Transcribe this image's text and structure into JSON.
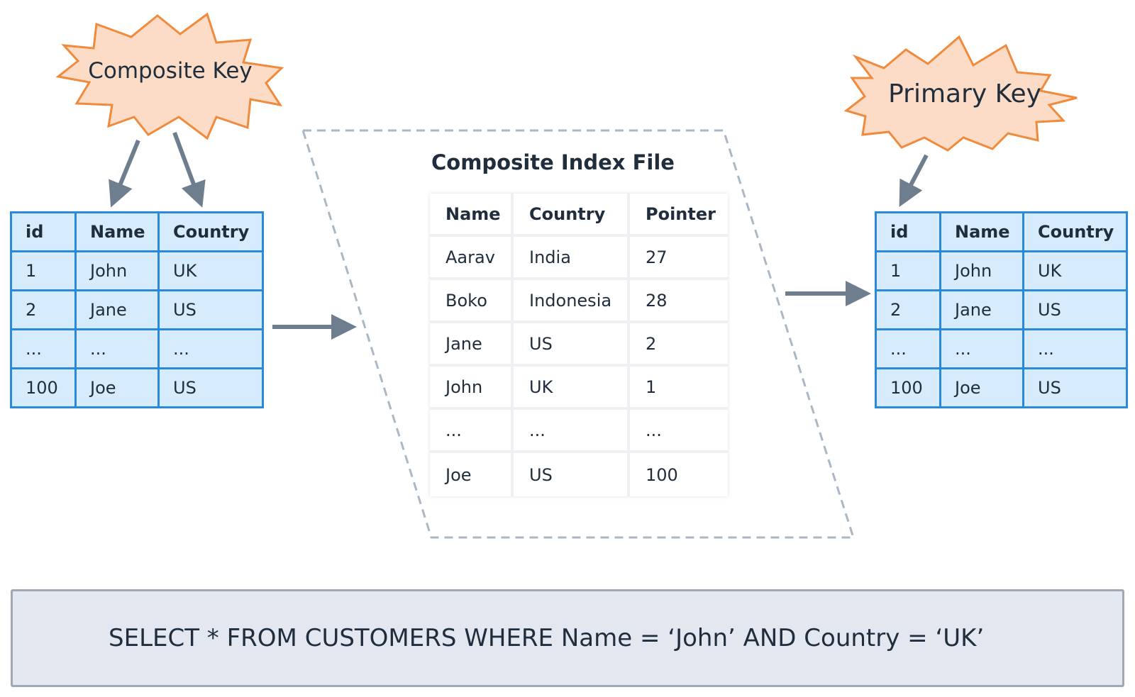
{
  "left_badge": {
    "label": "Composite Key"
  },
  "right_badge": {
    "label": "Primary Key"
  },
  "left_table": {
    "headers": [
      "id",
      "Name",
      "Country"
    ],
    "rows": [
      [
        "1",
        "John",
        "UK"
      ],
      [
        "2",
        "Jane",
        "US"
      ],
      [
        "...",
        "...",
        "..."
      ],
      [
        "100",
        "Joe",
        "US"
      ]
    ]
  },
  "index_file": {
    "title": "Composite Index File",
    "headers": [
      "Name",
      "Country",
      "Pointer"
    ],
    "rows": [
      [
        "Aarav",
        "India",
        "27"
      ],
      [
        "Boko",
        "Indonesia",
        "28"
      ],
      [
        "Jane",
        "US",
        "2"
      ],
      [
        "John",
        "UK",
        "1"
      ],
      [
        "...",
        "...",
        "..."
      ],
      [
        "Joe",
        "US",
        "100"
      ]
    ]
  },
  "right_table": {
    "headers": [
      "id",
      "Name",
      "Country"
    ],
    "rows": [
      [
        "1",
        "John",
        "UK"
      ],
      [
        "2",
        "Jane",
        "US"
      ],
      [
        "...",
        "...",
        "..."
      ],
      [
        "100",
        "Joe",
        "US"
      ]
    ]
  },
  "query": {
    "text": "SELECT * FROM CUSTOMERS WHERE Name = ‘John’ AND Country = ‘UK’"
  },
  "colors": {
    "burst_fill": "#fcdcc6",
    "burst_stroke": "#f08a3c",
    "table_fill": "#d6ebfb",
    "table_border": "#2a8ad9",
    "arrow": "#6f7e8f",
    "dashed_outline": "#aab8c6",
    "query_fill": "#e3e8f0",
    "query_border": "#9fa8b5"
  }
}
